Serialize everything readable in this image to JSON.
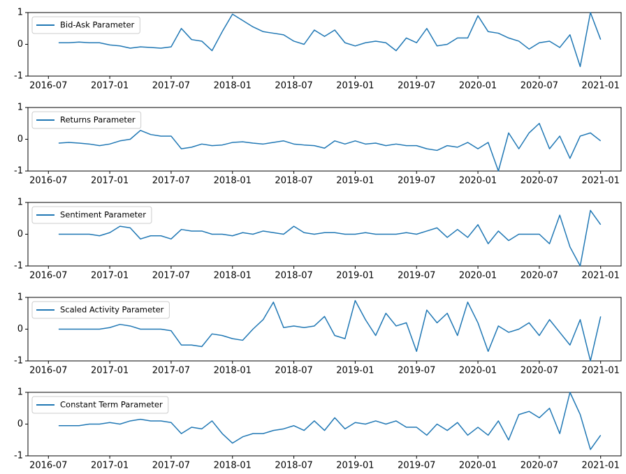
{
  "chart_data": [
    {
      "type": "line",
      "legend": "upper left",
      "x": [
        "2016-08",
        "2016-09",
        "2016-10",
        "2016-11",
        "2016-12",
        "2017-01",
        "2017-02",
        "2017-03",
        "2017-04",
        "2017-05",
        "2017-06",
        "2017-07",
        "2017-08",
        "2017-09",
        "2017-10",
        "2017-11",
        "2017-12",
        "2018-01",
        "2018-02",
        "2018-03",
        "2018-04",
        "2018-05",
        "2018-06",
        "2018-07",
        "2018-08",
        "2018-09",
        "2018-10",
        "2018-11",
        "2018-12",
        "2019-01",
        "2019-02",
        "2019-03",
        "2019-04",
        "2019-05",
        "2019-06",
        "2019-07",
        "2019-08",
        "2019-09",
        "2019-10",
        "2019-11",
        "2019-12",
        "2020-01",
        "2020-02",
        "2020-03",
        "2020-04",
        "2020-05",
        "2020-06",
        "2020-07",
        "2020-08",
        "2020-09",
        "2020-10",
        "2020-11",
        "2020-12",
        "2021-01"
      ],
      "series": [
        {
          "name": "Bid-Ask Parameter",
          "color": "#1f77b4",
          "values": [
            0.05,
            0.05,
            0.07,
            0.05,
            0.05,
            -0.02,
            -0.05,
            -0.12,
            -0.08,
            -0.1,
            -0.12,
            -0.08,
            0.5,
            0.15,
            0.1,
            -0.2,
            0.4,
            0.95,
            0.75,
            0.55,
            0.4,
            0.35,
            0.3,
            0.1,
            0.0,
            0.45,
            0.25,
            0.45,
            0.05,
            -0.05,
            0.05,
            0.1,
            0.05,
            -0.2,
            0.2,
            0.05,
            0.5,
            -0.05,
            0.0,
            0.2,
            0.2,
            0.9,
            0.4,
            0.35,
            0.2,
            0.1,
            -0.15,
            0.05,
            0.1,
            -0.1,
            0.3,
            -0.7,
            1.0,
            0.15
          ]
        }
      ],
      "xlim": [
        "2016-05",
        "2021-03"
      ],
      "xticks": [
        "2016-07",
        "2017-01",
        "2017-07",
        "2018-01",
        "2018-07",
        "2019-01",
        "2019-07",
        "2020-01",
        "2020-07",
        "2021-01"
      ],
      "ylim": [
        -1,
        1
      ],
      "yticks": [
        -1,
        0,
        1
      ]
    },
    {
      "type": "line",
      "legend": "upper left",
      "x": [
        "2016-08",
        "2016-09",
        "2016-10",
        "2016-11",
        "2016-12",
        "2017-01",
        "2017-02",
        "2017-03",
        "2017-04",
        "2017-05",
        "2017-06",
        "2017-07",
        "2017-08",
        "2017-09",
        "2017-10",
        "2017-11",
        "2017-12",
        "2018-01",
        "2018-02",
        "2018-03",
        "2018-04",
        "2018-05",
        "2018-06",
        "2018-07",
        "2018-08",
        "2018-09",
        "2018-10",
        "2018-11",
        "2018-12",
        "2019-01",
        "2019-02",
        "2019-03",
        "2019-04",
        "2019-05",
        "2019-06",
        "2019-07",
        "2019-08",
        "2019-09",
        "2019-10",
        "2019-11",
        "2019-12",
        "2020-01",
        "2020-02",
        "2020-03",
        "2020-04",
        "2020-05",
        "2020-06",
        "2020-07",
        "2020-08",
        "2020-09",
        "2020-10",
        "2020-11",
        "2020-12",
        "2021-01"
      ],
      "series": [
        {
          "name": "Returns Parameter",
          "color": "#1f77b4",
          "values": [
            -0.12,
            -0.1,
            -0.12,
            -0.15,
            -0.2,
            -0.15,
            -0.05,
            0.0,
            0.28,
            0.15,
            0.1,
            0.1,
            -0.3,
            -0.25,
            -0.15,
            -0.2,
            -0.18,
            -0.1,
            -0.08,
            -0.12,
            -0.15,
            -0.1,
            -0.05,
            -0.15,
            -0.18,
            -0.2,
            -0.28,
            -0.05,
            -0.15,
            -0.05,
            -0.15,
            -0.12,
            -0.2,
            -0.15,
            -0.2,
            -0.2,
            -0.3,
            -0.35,
            -0.2,
            -0.25,
            -0.1,
            -0.3,
            -0.1,
            -1.0,
            0.2,
            -0.3,
            0.2,
            0.5,
            -0.3,
            0.1,
            -0.6,
            0.1,
            0.2,
            -0.05
          ]
        }
      ],
      "xlim": [
        "2016-05",
        "2021-03"
      ],
      "xticks": [
        "2016-07",
        "2017-01",
        "2017-07",
        "2018-01",
        "2018-07",
        "2019-01",
        "2019-07",
        "2020-01",
        "2020-07",
        "2021-01"
      ],
      "ylim": [
        -1,
        1
      ],
      "yticks": [
        -1,
        0,
        1
      ]
    },
    {
      "type": "line",
      "legend": "upper left",
      "x": [
        "2016-08",
        "2016-09",
        "2016-10",
        "2016-11",
        "2016-12",
        "2017-01",
        "2017-02",
        "2017-03",
        "2017-04",
        "2017-05",
        "2017-06",
        "2017-07",
        "2017-08",
        "2017-09",
        "2017-10",
        "2017-11",
        "2017-12",
        "2018-01",
        "2018-02",
        "2018-03",
        "2018-04",
        "2018-05",
        "2018-06",
        "2018-07",
        "2018-08",
        "2018-09",
        "2018-10",
        "2018-11",
        "2018-12",
        "2019-01",
        "2019-02",
        "2019-03",
        "2019-04",
        "2019-05",
        "2019-06",
        "2019-07",
        "2019-08",
        "2019-09",
        "2019-10",
        "2019-11",
        "2019-12",
        "2020-01",
        "2020-02",
        "2020-03",
        "2020-04",
        "2020-05",
        "2020-06",
        "2020-07",
        "2020-08",
        "2020-09",
        "2020-10",
        "2020-11",
        "2020-12",
        "2021-01"
      ],
      "series": [
        {
          "name": "Sentiment Parameter",
          "color": "#1f77b4",
          "values": [
            0.0,
            0.0,
            0.0,
            0.0,
            -0.05,
            0.05,
            0.25,
            0.2,
            -0.15,
            -0.05,
            -0.05,
            -0.15,
            0.15,
            0.1,
            0.1,
            0.0,
            0.0,
            -0.05,
            0.05,
            0.0,
            0.1,
            0.05,
            0.0,
            0.25,
            0.05,
            0.0,
            0.05,
            0.05,
            0.0,
            0.0,
            0.05,
            0.0,
            0.0,
            0.0,
            0.05,
            0.0,
            0.1,
            0.2,
            -0.1,
            0.15,
            -0.1,
            0.3,
            -0.3,
            0.1,
            -0.2,
            0.0,
            0.0,
            0.0,
            -0.3,
            0.6,
            -0.4,
            -1.0,
            0.75,
            0.3
          ]
        }
      ],
      "xlim": [
        "2016-05",
        "2021-03"
      ],
      "xticks": [
        "2016-07",
        "2017-01",
        "2017-07",
        "2018-01",
        "2018-07",
        "2019-01",
        "2019-07",
        "2020-01",
        "2020-07",
        "2021-01"
      ],
      "ylim": [
        -1,
        1
      ],
      "yticks": [
        -1,
        0,
        1
      ]
    },
    {
      "type": "line",
      "legend": "upper left",
      "x": [
        "2016-08",
        "2016-09",
        "2016-10",
        "2016-11",
        "2016-12",
        "2017-01",
        "2017-02",
        "2017-03",
        "2017-04",
        "2017-05",
        "2017-06",
        "2017-07",
        "2017-08",
        "2017-09",
        "2017-10",
        "2017-11",
        "2017-12",
        "2018-01",
        "2018-02",
        "2018-03",
        "2018-04",
        "2018-05",
        "2018-06",
        "2018-07",
        "2018-08",
        "2018-09",
        "2018-10",
        "2018-11",
        "2018-12",
        "2019-01",
        "2019-02",
        "2019-03",
        "2019-04",
        "2019-05",
        "2019-06",
        "2019-07",
        "2019-08",
        "2019-09",
        "2019-10",
        "2019-11",
        "2019-12",
        "2020-01",
        "2020-02",
        "2020-03",
        "2020-04",
        "2020-05",
        "2020-06",
        "2020-07",
        "2020-08",
        "2020-09",
        "2020-10",
        "2020-11",
        "2020-12",
        "2021-01"
      ],
      "series": [
        {
          "name": "Scaled Activity Parameter",
          "color": "#1f77b4",
          "values": [
            0.0,
            0.0,
            0.0,
            0.0,
            0.0,
            0.05,
            0.15,
            0.1,
            0.0,
            0.0,
            0.0,
            -0.05,
            -0.5,
            -0.5,
            -0.55,
            -0.15,
            -0.2,
            -0.3,
            -0.35,
            0.0,
            0.3,
            0.85,
            0.05,
            0.1,
            0.05,
            0.1,
            0.4,
            -0.2,
            -0.3,
            0.9,
            0.3,
            -0.2,
            0.5,
            0.1,
            0.2,
            -0.7,
            0.6,
            0.2,
            0.5,
            -0.2,
            0.85,
            0.2,
            -0.7,
            0.1,
            -0.1,
            0.0,
            0.2,
            -0.2,
            0.3,
            -0.1,
            -0.5,
            0.3,
            -1.0,
            0.4
          ]
        }
      ],
      "xlim": [
        "2016-05",
        "2021-03"
      ],
      "xticks": [
        "2016-07",
        "2017-01",
        "2017-07",
        "2018-01",
        "2018-07",
        "2019-01",
        "2019-07",
        "2020-01",
        "2020-07",
        "2021-01"
      ],
      "ylim": [
        -1,
        1
      ],
      "yticks": [
        -1,
        0,
        1
      ]
    },
    {
      "type": "line",
      "legend": "upper left",
      "x": [
        "2016-08",
        "2016-09",
        "2016-10",
        "2016-11",
        "2016-12",
        "2017-01",
        "2017-02",
        "2017-03",
        "2017-04",
        "2017-05",
        "2017-06",
        "2017-07",
        "2017-08",
        "2017-09",
        "2017-10",
        "2017-11",
        "2017-12",
        "2018-01",
        "2018-02",
        "2018-03",
        "2018-04",
        "2018-05",
        "2018-06",
        "2018-07",
        "2018-08",
        "2018-09",
        "2018-10",
        "2018-11",
        "2018-12",
        "2019-01",
        "2019-02",
        "2019-03",
        "2019-04",
        "2019-05",
        "2019-06",
        "2019-07",
        "2019-08",
        "2019-09",
        "2019-10",
        "2019-11",
        "2019-12",
        "2020-01",
        "2020-02",
        "2020-03",
        "2020-04",
        "2020-05",
        "2020-06",
        "2020-07",
        "2020-08",
        "2020-09",
        "2020-10",
        "2020-11",
        "2020-12",
        "2021-01"
      ],
      "series": [
        {
          "name": "Constant Term Parameter",
          "color": "#1f77b4",
          "values": [
            -0.05,
            -0.05,
            -0.05,
            0.0,
            0.0,
            0.05,
            0.0,
            0.1,
            0.15,
            0.1,
            0.1,
            0.05,
            -0.3,
            -0.1,
            -0.15,
            0.1,
            -0.3,
            -0.6,
            -0.4,
            -0.3,
            -0.3,
            -0.2,
            -0.15,
            -0.05,
            -0.2,
            0.1,
            -0.2,
            0.2,
            -0.15,
            0.05,
            0.0,
            0.1,
            0.0,
            0.1,
            -0.1,
            -0.1,
            -0.35,
            0.0,
            -0.2,
            0.05,
            -0.35,
            -0.1,
            -0.35,
            0.1,
            -0.5,
            0.3,
            0.4,
            0.2,
            0.5,
            -0.3,
            1.0,
            0.3,
            -0.8,
            -0.35
          ]
        }
      ],
      "xlim": [
        "2016-05",
        "2021-03"
      ],
      "xticks": [
        "2016-07",
        "2017-01",
        "2017-07",
        "2018-01",
        "2018-07",
        "2019-01",
        "2019-07",
        "2020-01",
        "2020-07",
        "2021-01"
      ],
      "ylim": [
        -1,
        1
      ],
      "yticks": [
        -1,
        0,
        1
      ]
    }
  ]
}
